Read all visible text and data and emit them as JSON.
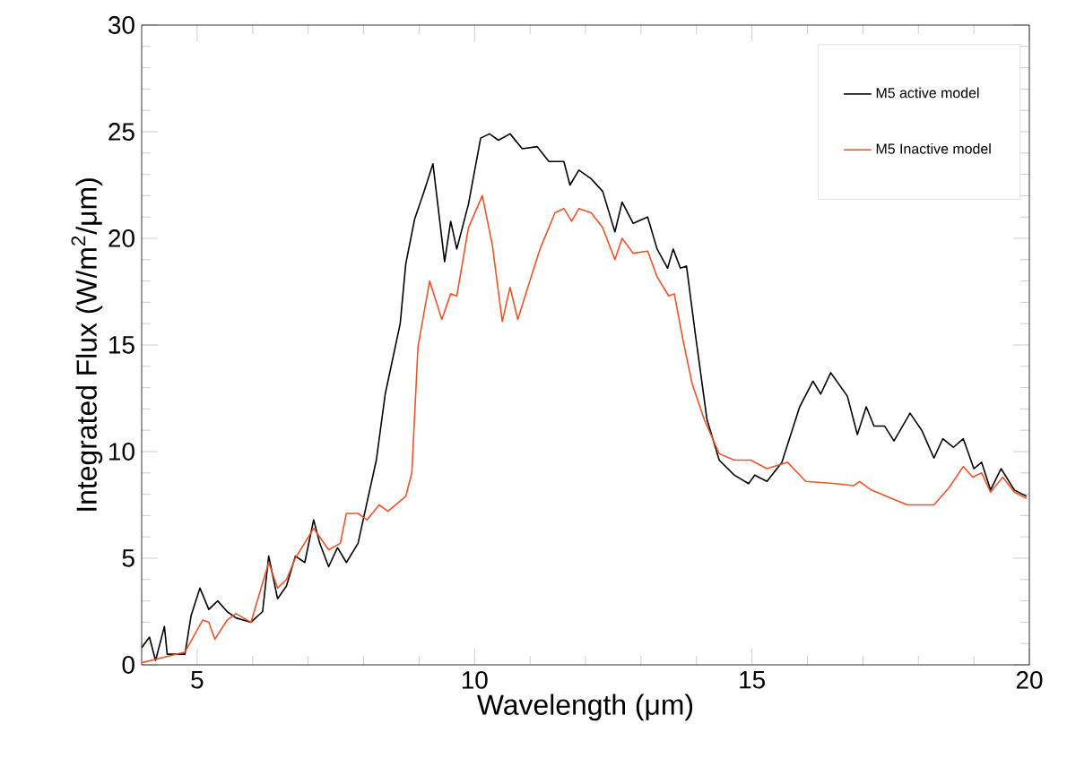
{
  "chart_data": {
    "type": "line",
    "xlabel": "Wavelength (μm)",
    "ylabel": "Integrated Flux (W/m$^{2}$/μm)",
    "xlim": [
      4,
      20
    ],
    "ylim": [
      0,
      30
    ],
    "xticks": [
      5,
      10,
      15,
      20
    ],
    "yticks": [
      0,
      5,
      10,
      15,
      20,
      25,
      30
    ],
    "legend": "top right",
    "grid": false,
    "marker": "none",
    "line_style": "solid",
    "series": [
      {
        "name": "M5 active model",
        "color": "#000000",
        "x": [
          4.0,
          4.14,
          4.25,
          4.41,
          4.46,
          4.78,
          4.89,
          5.05,
          5.21,
          5.37,
          5.54,
          5.7,
          5.97,
          6.18,
          6.29,
          6.45,
          6.61,
          6.77,
          6.94,
          7.1,
          7.21,
          7.37,
          7.53,
          7.69,
          7.9,
          8.06,
          8.23,
          8.39,
          8.66,
          8.76,
          8.92,
          9.09,
          9.25,
          9.46,
          9.57,
          9.68,
          9.89,
          10.11,
          10.27,
          10.43,
          10.64,
          10.86,
          11.13,
          11.34,
          11.61,
          11.72,
          11.88,
          12.1,
          12.31,
          12.53,
          12.66,
          12.86,
          13.12,
          13.29,
          13.48,
          13.58,
          13.71,
          13.82,
          13.98,
          14.19,
          14.41,
          14.68,
          14.94,
          15.05,
          15.27,
          15.54,
          15.86,
          16.1,
          16.24,
          16.42,
          16.72,
          16.9,
          17.06,
          17.2,
          17.39,
          17.56,
          17.85,
          18.06,
          18.28,
          18.44,
          18.63,
          18.81,
          19.0,
          19.14,
          19.3,
          19.49,
          19.73,
          19.95
        ],
        "values": [
          0.8,
          1.3,
          0.2,
          1.8,
          0.5,
          0.5,
          2.3,
          3.6,
          2.6,
          3.0,
          2.5,
          2.2,
          2.0,
          2.5,
          5.1,
          3.1,
          3.7,
          5.1,
          4.8,
          6.8,
          5.7,
          4.6,
          5.5,
          4.8,
          5.7,
          7.6,
          9.6,
          12.7,
          16.0,
          18.8,
          20.9,
          22.2,
          23.5,
          18.9,
          20.8,
          19.5,
          21.6,
          24.7,
          24.9,
          24.6,
          24.9,
          24.2,
          24.3,
          23.6,
          23.6,
          22.5,
          23.2,
          22.8,
          22.2,
          20.3,
          21.7,
          20.7,
          21.0,
          19.5,
          18.6,
          19.5,
          18.6,
          18.7,
          15.5,
          11.5,
          9.6,
          8.9,
          8.5,
          8.9,
          8.6,
          9.5,
          12.1,
          13.3,
          12.7,
          13.7,
          12.6,
          10.8,
          12.1,
          11.2,
          11.2,
          10.5,
          11.8,
          11.0,
          9.7,
          10.6,
          10.2,
          10.6,
          9.2,
          9.5,
          8.2,
          9.2,
          8.2,
          7.9
        ]
      },
      {
        "name": "M5 Inactive model",
        "color": "#e8542c",
        "x": [
          4.0,
          4.78,
          5.1,
          5.21,
          5.32,
          5.54,
          5.7,
          5.97,
          6.29,
          6.45,
          6.61,
          6.77,
          7.1,
          7.37,
          7.58,
          7.69,
          7.9,
          8.06,
          8.28,
          8.44,
          8.76,
          8.87,
          8.98,
          9.19,
          9.41,
          9.57,
          9.68,
          9.89,
          10.14,
          10.32,
          10.5,
          10.64,
          10.78,
          10.96,
          11.18,
          11.45,
          11.61,
          11.75,
          11.88,
          12.1,
          12.31,
          12.53,
          12.66,
          12.86,
          13.12,
          13.29,
          13.5,
          13.6,
          13.76,
          13.92,
          14.14,
          14.41,
          14.68,
          14.98,
          15.27,
          15.64,
          15.97,
          16.51,
          16.83,
          16.94,
          17.15,
          17.8,
          18.28,
          18.55,
          18.81,
          18.98,
          19.14,
          19.3,
          19.52,
          19.73,
          19.95
        ],
        "values": [
          0.1,
          0.6,
          2.1,
          2.0,
          1.2,
          2.1,
          2.4,
          2.0,
          4.8,
          3.6,
          4.0,
          5.0,
          6.4,
          5.4,
          5.7,
          7.1,
          7.1,
          6.8,
          7.5,
          7.2,
          7.9,
          9.0,
          14.9,
          18.0,
          16.2,
          17.4,
          17.3,
          20.5,
          22.0,
          19.7,
          16.1,
          17.7,
          16.2,
          17.7,
          19.5,
          21.2,
          21.4,
          20.8,
          21.4,
          21.2,
          20.5,
          19.0,
          20.0,
          19.3,
          19.4,
          18.2,
          17.3,
          17.4,
          15.2,
          13.2,
          11.5,
          9.9,
          9.6,
          9.6,
          9.2,
          9.5,
          8.6,
          8.5,
          8.4,
          8.6,
          8.2,
          7.5,
          7.5,
          8.3,
          9.3,
          8.8,
          9.0,
          8.1,
          8.8,
          8.1,
          7.8
        ]
      }
    ]
  }
}
